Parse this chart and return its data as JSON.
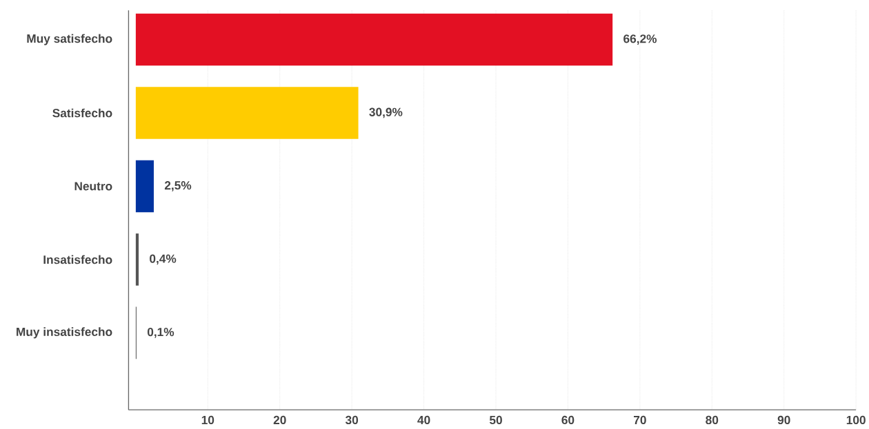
{
  "chart_data": {
    "type": "bar",
    "orientation": "horizontal",
    "categories": [
      "Muy satisfecho",
      "Satisfecho",
      "Neutro",
      "Insatisfecho",
      "Muy insatisfecho"
    ],
    "values": [
      66.2,
      30.9,
      2.5,
      0.4,
      0.1
    ],
    "value_labels": [
      "66,2%",
      "30,9%",
      "2,5%",
      "0,4%",
      "0,1%"
    ],
    "colors": [
      "#e31023",
      "#ffcc00",
      "#0033a0",
      "#555555",
      "#555555"
    ],
    "xlim": [
      -1,
      100
    ],
    "xticks": [
      10,
      20,
      30,
      40,
      50,
      60,
      70,
      80,
      90,
      100
    ],
    "grid": "x"
  }
}
